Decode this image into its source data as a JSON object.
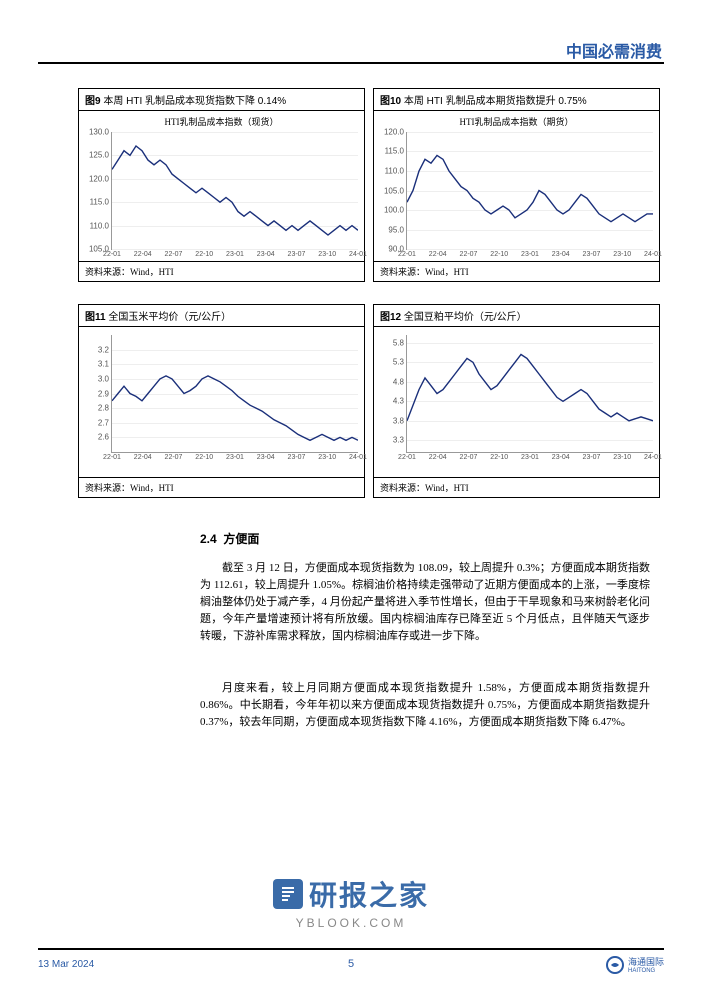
{
  "header": {
    "title": "中国必需消费"
  },
  "charts": [
    {
      "fig_label": "图9",
      "fig_title": "本周 HTI 乳制品成本现货指数下降 0.14%",
      "subtitle": "HTI乳制品成本指数（现货）",
      "source": "资料来源：Wind，HTI",
      "type": "line",
      "ylim": [
        105,
        130
      ],
      "ytick_step": 5,
      "yticks": [
        "105.0",
        "110.0",
        "115.0",
        "120.0",
        "125.0",
        "130.0"
      ],
      "xticks": [
        "22-01",
        "22-04",
        "22-07",
        "22-10",
        "23-01",
        "23-04",
        "23-07",
        "23-10",
        "24-01"
      ],
      "line_color": "#1a2f7a",
      "values": [
        122,
        124,
        126,
        125,
        127,
        126,
        124,
        123,
        124,
        123,
        121,
        120,
        119,
        118,
        117,
        118,
        117,
        116,
        115,
        116,
        115,
        113,
        112,
        113,
        112,
        111,
        110,
        111,
        110,
        109,
        110,
        109,
        110,
        111,
        110,
        109,
        108,
        109,
        110,
        109,
        110,
        109
      ]
    },
    {
      "fig_label": "图10",
      "fig_title": "本周 HTI 乳制品成本期货指数提升 0.75%",
      "subtitle": "HTI乳制品成本指数（期货）",
      "source": "资料来源：Wind，HTI",
      "type": "line",
      "ylim": [
        90,
        120
      ],
      "ytick_step": 5,
      "yticks": [
        "90.0",
        "95.0",
        "100.0",
        "105.0",
        "110.0",
        "115.0",
        "120.0"
      ],
      "xticks": [
        "22-01",
        "22-04",
        "22-07",
        "22-10",
        "23-01",
        "23-04",
        "23-07",
        "23-10",
        "24-01"
      ],
      "line_color": "#1a2f7a",
      "values": [
        102,
        105,
        110,
        113,
        112,
        114,
        113,
        110,
        108,
        106,
        105,
        103,
        102,
        100,
        99,
        100,
        101,
        100,
        98,
        99,
        100,
        102,
        105,
        104,
        102,
        100,
        99,
        100,
        102,
        104,
        103,
        101,
        99,
        98,
        97,
        98,
        99,
        98,
        97,
        98,
        99,
        99
      ]
    },
    {
      "fig_label": "图11",
      "fig_title": "全国玉米平均价（元/公斤）",
      "subtitle": "",
      "source": "资料来源：Wind，HTI",
      "type": "line",
      "ylim": [
        2.5,
        3.3
      ],
      "ytick_step": 0.1,
      "yticks": [
        "2.6",
        "2.7",
        "2.8",
        "2.9",
        "3.0",
        "3.1",
        "3.2"
      ],
      "xticks": [
        "22-01",
        "22-04",
        "22-07",
        "22-10",
        "23-01",
        "23-04",
        "23-07",
        "23-10",
        "24-01"
      ],
      "line_color": "#1a2f7a",
      "values": [
        2.85,
        2.9,
        2.95,
        2.9,
        2.88,
        2.85,
        2.9,
        2.95,
        3.0,
        3.02,
        3.0,
        2.95,
        2.9,
        2.92,
        2.95,
        3.0,
        3.02,
        3.0,
        2.98,
        2.95,
        2.92,
        2.88,
        2.85,
        2.82,
        2.8,
        2.78,
        2.75,
        2.72,
        2.7,
        2.68,
        2.65,
        2.62,
        2.6,
        2.58,
        2.6,
        2.62,
        2.6,
        2.58,
        2.6,
        2.58,
        2.6,
        2.58
      ]
    },
    {
      "fig_label": "图12",
      "fig_title": "全国豆粕平均价（元/公斤）",
      "subtitle": "",
      "source": "资料来源：Wind，HTI",
      "type": "line",
      "ylim": [
        3.0,
        6.0
      ],
      "ytick_step": 0.5,
      "yticks": [
        "3.3",
        "3.8",
        "4.3",
        "4.8",
        "5.3",
        "5.8"
      ],
      "xticks": [
        "22-01",
        "22-04",
        "22-07",
        "22-10",
        "23-01",
        "23-04",
        "23-07",
        "23-10",
        "24-01"
      ],
      "line_color": "#1a2f7a",
      "values": [
        3.8,
        4.2,
        4.6,
        4.9,
        4.7,
        4.5,
        4.6,
        4.8,
        5.0,
        5.2,
        5.4,
        5.3,
        5.0,
        4.8,
        4.6,
        4.7,
        4.9,
        5.1,
        5.3,
        5.5,
        5.4,
        5.2,
        5.0,
        4.8,
        4.6,
        4.4,
        4.3,
        4.4,
        4.5,
        4.6,
        4.5,
        4.3,
        4.1,
        4.0,
        3.9,
        4.0,
        3.9,
        3.8,
        3.85,
        3.9,
        3.85,
        3.8
      ]
    }
  ],
  "section": {
    "number": "2.4",
    "title": "方便面"
  },
  "paragraphs": [
    "截至 3 月 12 日，方便面成本现货指数为 108.09，较上周提升 0.3%；方便面成本期货指数为 112.61，较上周提升 1.05%。棕榈油价格持续走强带动了近期方便面成本的上涨，一季度棕榈油整体仍处于减产季，4 月份起产量将进入季节性增长，但由于干旱现象和马来树龄老化问题，今年产量增速预计将有所放缓。国内棕榈油库存已降至近 5 个月低点，且伴随天气逐步转暖，下游补库需求释放，国内棕榈油库存或进一步下降。",
    "月度来看，较上月同期方便面成本现货指数提升 1.58%，方便面成本期货指数提升 0.86%。中长期看，今年年初以来方便面成本现货指数提升 0.75%，方便面成本期货指数提升 0.37%，较去年同期，方便面成本现货指数下降 4.16%，方便面成本期货指数下降 6.47%。"
  ],
  "footer": {
    "date": "13 Mar 2024",
    "page": "5",
    "brand": "海通国际",
    "brand_en": "HAITONG"
  },
  "watermark": {
    "main": "研报之家",
    "sub": "YBLOOK.COM"
  },
  "colors": {
    "accent": "#2a5aa5",
    "line": "#1a2f7a",
    "grid": "#eeeeee",
    "text": "#000000"
  }
}
